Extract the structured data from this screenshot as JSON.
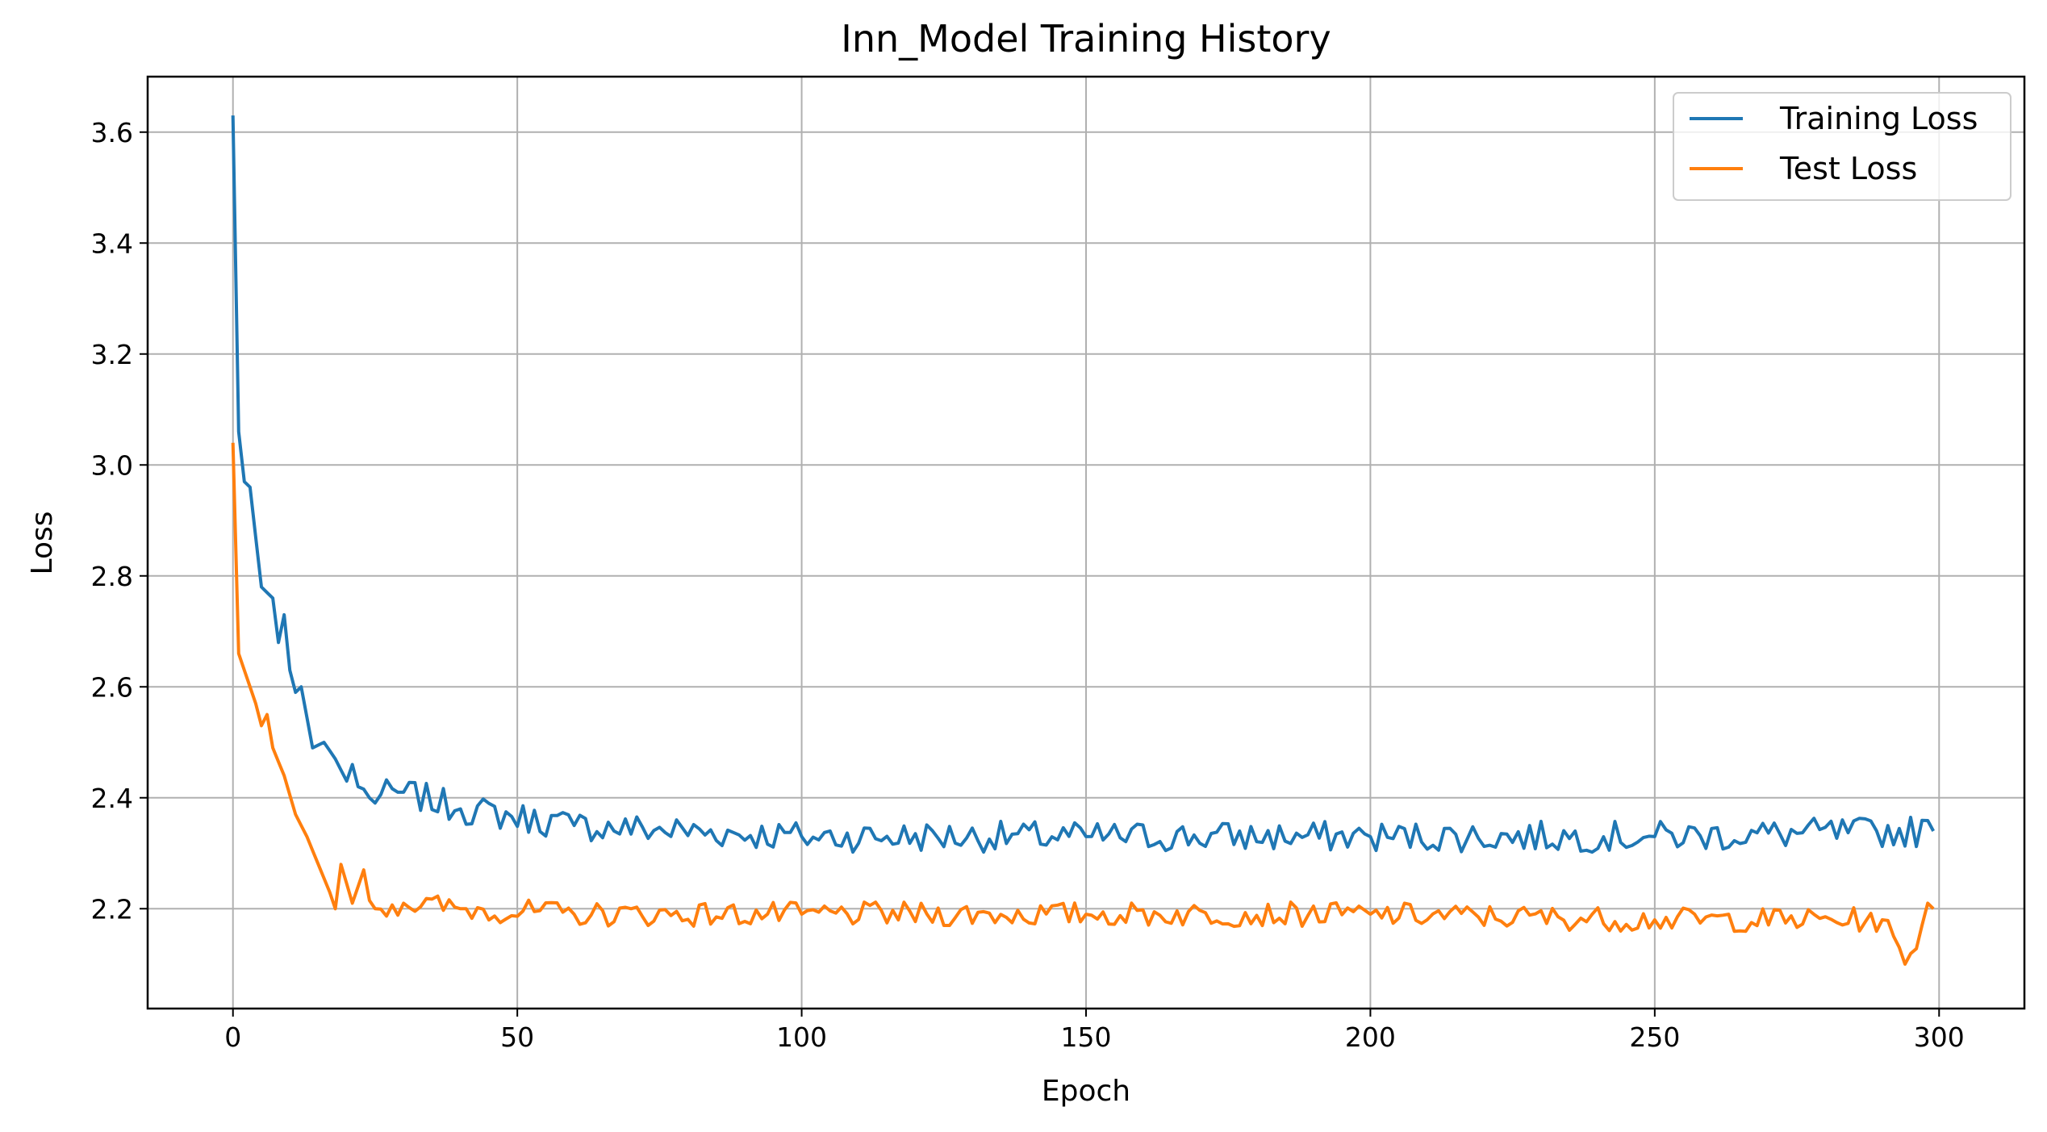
{
  "chart_data": {
    "type": "line",
    "title": "Inn_Model Training History",
    "xlabel": "Epoch",
    "ylabel": "Loss",
    "xlim": [
      -15,
      315
    ],
    "ylim": [
      2.02,
      3.7
    ],
    "xticks": [
      0,
      50,
      100,
      150,
      200,
      250,
      300
    ],
    "yticks": [
      2.2,
      2.4,
      2.6,
      2.8,
      3.0,
      3.2,
      3.4,
      3.6
    ],
    "ytick_labels": [
      "2.2",
      "2.4",
      "2.6",
      "2.8",
      "3.0",
      "3.2",
      "3.4",
      "3.6"
    ],
    "grid": true,
    "legend_position": "top-right",
    "colors": {
      "training": "#1f77b4",
      "test": "#ff7f0e"
    },
    "series": [
      {
        "name": "Training Loss",
        "keypoints": [
          [
            0,
            3.63
          ],
          [
            1,
            3.06
          ],
          [
            2,
            2.97
          ],
          [
            3,
            2.96
          ],
          [
            5,
            2.78
          ],
          [
            7,
            2.76
          ],
          [
            8,
            2.68
          ],
          [
            9,
            2.73
          ],
          [
            10,
            2.63
          ],
          [
            11,
            2.59
          ],
          [
            12,
            2.6
          ],
          [
            14,
            2.49
          ],
          [
            16,
            2.5
          ],
          [
            18,
            2.47
          ],
          [
            20,
            2.43
          ],
          [
            21,
            2.46
          ],
          [
            22,
            2.42
          ],
          [
            24,
            2.4
          ],
          [
            30,
            2.41
          ],
          [
            40,
            2.38
          ],
          [
            60,
            2.35
          ],
          [
            100,
            2.33
          ],
          [
            150,
            2.33
          ],
          [
            200,
            2.33
          ],
          [
            250,
            2.33
          ],
          [
            299,
            2.34
          ]
        ],
        "noise": 0.028
      },
      {
        "name": "Test Loss",
        "keypoints": [
          [
            0,
            3.04
          ],
          [
            1,
            2.66
          ],
          [
            2,
            2.63
          ],
          [
            3,
            2.6
          ],
          [
            4,
            2.57
          ],
          [
            5,
            2.53
          ],
          [
            6,
            2.55
          ],
          [
            7,
            2.49
          ],
          [
            9,
            2.44
          ],
          [
            11,
            2.37
          ],
          [
            13,
            2.33
          ],
          [
            15,
            2.28
          ],
          [
            17,
            2.23
          ],
          [
            18,
            2.2
          ],
          [
            19,
            2.28
          ],
          [
            21,
            2.21
          ],
          [
            23,
            2.27
          ],
          [
            25,
            2.2
          ],
          [
            30,
            2.21
          ],
          [
            40,
            2.2
          ],
          [
            60,
            2.19
          ],
          [
            100,
            2.19
          ],
          [
            150,
            2.19
          ],
          [
            200,
            2.19
          ],
          [
            250,
            2.18
          ],
          [
            290,
            2.18
          ],
          [
            294,
            2.1
          ],
          [
            297,
            2.17
          ],
          [
            298,
            2.21
          ],
          [
            299,
            2.2
          ]
        ],
        "noise": 0.022
      }
    ]
  }
}
